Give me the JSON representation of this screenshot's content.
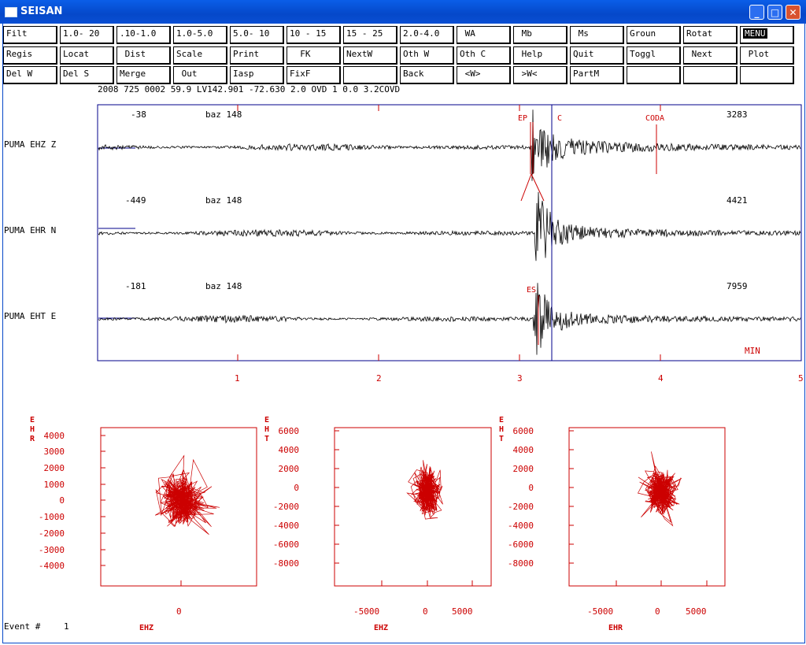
{
  "window": {
    "title": "SEISAN",
    "minimize_icon": "minimize-icon",
    "maximize_icon": "maximize-icon",
    "close_icon": "close-icon"
  },
  "menu": {
    "rows": [
      [
        "Filt",
        "1.0- 20",
        ".10-1.0",
        "1.0-5.0",
        "5.0- 10",
        "10 - 15",
        "15 - 25",
        "2.0-4.0",
        " WA",
        " Mb",
        " Ms",
        "Groun",
        "Rotat",
        "MENU"
      ],
      [
        "Regis",
        "Locat",
        " Dist",
        "Scale",
        "Print",
        "  FK",
        "NextW",
        "Oth W",
        "Oth C",
        " Help",
        "Quit",
        "Toggl",
        " Next",
        " Plot"
      ],
      [
        "Del W",
        "Del S",
        "Merge",
        " Out",
        "Iasp",
        "FixF",
        "",
        "Back",
        " <W>",
        " >W<",
        "PartM",
        "",
        "",
        ""
      ]
    ]
  },
  "header_line": "2008  725 0002 59.9 LV142.901 -72.630  2.0  OVD  1 0.0 3.2COVD",
  "traces": [
    {
      "station": "PUMA  EHZ Z",
      "min_amp": "-38",
      "baz": "baz 148",
      "max_amp": "3283"
    },
    {
      "station": "PUMA  EHR N",
      "min_amp": "-449",
      "baz": "baz 148",
      "max_amp": "4421"
    },
    {
      "station": "PUMA  EHT E",
      "min_amp": "-181",
      "baz": "baz 148",
      "max_amp": "7959"
    }
  ],
  "phases": {
    "ep": "EP",
    "c": "C",
    "coda": "CODA",
    "es": "ES"
  },
  "time_axis": {
    "unit": "MIN",
    "ticks": [
      "1",
      "2",
      "3",
      "4",
      "5"
    ]
  },
  "status": {
    "event_label": "Event #",
    "event_number": "1"
  },
  "colors": {
    "trace": "#000000",
    "frame": "#00008b",
    "annotation": "#cc0000",
    "pointer": "#00008b"
  },
  "chart_data": [
    {
      "type": "scatter",
      "xlabel": "EHZ",
      "ylabel": "EHR",
      "x_ticks": [
        "0"
      ],
      "y_ticks": [
        "4000",
        "3000",
        "2000",
        "1000",
        "0",
        "-1000",
        "-2000",
        "-3000",
        "-4000"
      ],
      "ylim": [
        -4800,
        4800
      ]
    },
    {
      "type": "scatter",
      "xlabel": "EHZ",
      "ylabel": "EHT",
      "x_ticks": [
        "-5000",
        "0",
        "5000"
      ],
      "y_ticks": [
        "6000",
        "4000",
        "2000",
        "0",
        "-2000",
        "-4000",
        "-6000",
        "-8000"
      ],
      "ylim": [
        -9000,
        7000
      ]
    },
    {
      "type": "scatter",
      "xlabel": "EHR",
      "ylabel": "EHT",
      "x_ticks": [
        "-5000",
        "0",
        "5000"
      ],
      "y_ticks": [
        "6000",
        "4000",
        "2000",
        "0",
        "-2000",
        "-4000",
        "-6000",
        "-8000"
      ],
      "ylim": [
        -9000,
        7000
      ]
    }
  ]
}
